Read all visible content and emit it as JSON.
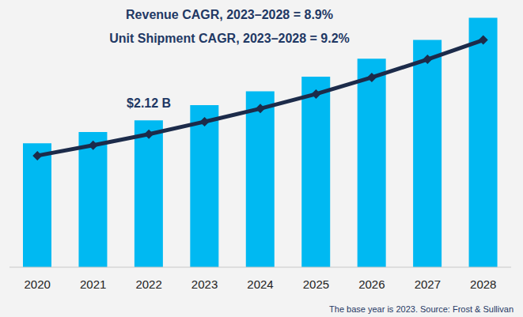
{
  "chart_data": {
    "type": "bar",
    "title": "Revenue CAGR, 2023–2028 = 8.9%",
    "subtitle": "Unit Shipment CAGR, 2023–2028 = 9.2%",
    "footnote": "The base year is 2023. Source: Frost & Sullivan",
    "categories": [
      "2020",
      "2021",
      "2022",
      "2023",
      "2024",
      "2025",
      "2026",
      "2027",
      "2028"
    ],
    "series": [
      {
        "type": "bar",
        "color": "#00b9f2",
        "values": [
          1.79,
          1.95,
          2.12,
          2.34,
          2.54,
          2.75,
          3.01,
          3.28,
          3.6
        ]
      },
      {
        "type": "line",
        "color": "#1c2b4a",
        "marker": "diamond",
        "values": [
          1.61,
          1.76,
          1.92,
          2.1,
          2.29,
          2.5,
          2.74,
          3.0,
          3.28
        ]
      }
    ],
    "annotations": [
      {
        "text": "$2.12 B",
        "x": "2022",
        "y": 2.12
      }
    ],
    "ylim": [
      0,
      3.8
    ],
    "tick_labels": "x",
    "grid": false
  }
}
